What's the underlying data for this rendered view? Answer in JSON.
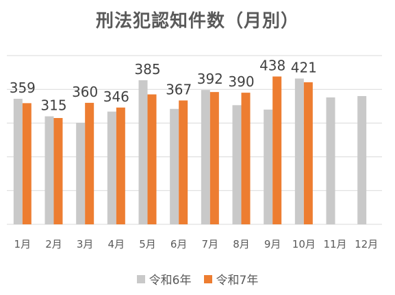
{
  "chart_data": {
    "type": "bar",
    "title": "刑法犯認知件数（月別）",
    "categories": [
      "1月",
      "2月",
      "3月",
      "4月",
      "5月",
      "6月",
      "7月",
      "8月",
      "9月",
      "10月",
      "11月",
      "12月"
    ],
    "series": [
      {
        "name": "令和6年",
        "color": "#c9c9c9",
        "values": [
          372,
          320,
          301,
          334,
          427,
          342,
          398,
          353,
          340,
          432,
          376,
          380
        ]
      },
      {
        "name": "令和7年",
        "color": "#ed7d31",
        "values": [
          359,
          315,
          360,
          346,
          385,
          367,
          392,
          390,
          438,
          421,
          null,
          null
        ]
      }
    ],
    "data_labels": {
      "series": "令和7年",
      "values": [
        "359",
        "315",
        "360",
        "346",
        "385",
        "367",
        "392",
        "390",
        "438",
        "421"
      ]
    },
    "ylim": [
      0,
      500
    ],
    "grid": true,
    "legend_position": "bottom"
  }
}
